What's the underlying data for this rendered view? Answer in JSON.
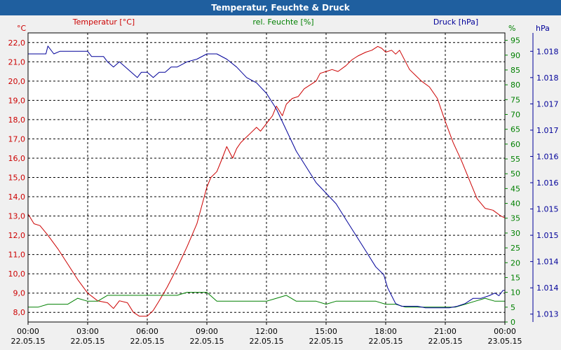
{
  "window": {
    "title": "Temperatur, Feuchte & Druck"
  },
  "chart_data": {
    "type": "line",
    "title": "Temperatur, Feuchte & Druck",
    "x_time_labels": [
      "00:00",
      "03:00",
      "06:00",
      "09:00",
      "12:00",
      "15:00",
      "18:00",
      "21:00",
      "00:00"
    ],
    "x_date_labels": [
      "22.05.15",
      "22.05.15",
      "22.05.15",
      "22.05.15",
      "22.05.15",
      "22.05.15",
      "22.05.15",
      "22.05.15",
      "23.05.15"
    ],
    "x_range": [
      0,
      24
    ],
    "grid": true,
    "colors": {
      "temperature": "#cc0000",
      "humidity": "#008000",
      "pressure": "#000099",
      "grid": "#000000",
      "background": "#ffffff",
      "title_bar": "#1f5f9f"
    },
    "axes": {
      "temperature": {
        "label": "Temperatur [°C]",
        "unit": "°C",
        "range": [
          7.5,
          22.5
        ],
        "ticks": [
          "8,0",
          "9,0",
          "10,0",
          "11,0",
          "12,0",
          "13,0",
          "14,0",
          "15,0",
          "16,0",
          "17,0",
          "18,0",
          "19,0",
          "20,0",
          "21,0",
          "22,0"
        ]
      },
      "humidity": {
        "label": "rel. Feuchte [%]",
        "unit": "%",
        "range": [
          0,
          97.5
        ],
        "ticks": [
          "0",
          "5",
          "10",
          "15",
          "20",
          "25",
          "30",
          "35",
          "40",
          "45",
          "50",
          "55",
          "60",
          "65",
          "70",
          "75",
          "80",
          "85",
          "90",
          "95"
        ]
      },
      "pressure": {
        "label": "Druck [hPa]",
        "unit": "hPa",
        "range": [
          1012.85,
          1018.35
        ],
        "ticks": [
          "1.013",
          "1.014",
          "1.014",
          "1.015",
          "1.015",
          "1.016",
          "1.016",
          "1.017",
          "1.017",
          "1.018",
          "1.018"
        ]
      }
    },
    "series": [
      {
        "name": "Temperatur",
        "axis": "temperature",
        "x": [
          0,
          0.3,
          0.6,
          1,
          1.5,
          2,
          2.5,
          3,
          3.5,
          4,
          4.3,
          4.6,
          5,
          5.3,
          5.6,
          6,
          6.3,
          6.6,
          7,
          7.5,
          8,
          8.5,
          9,
          9.2,
          9.5,
          9.7,
          10,
          10.3,
          10.5,
          10.7,
          10.9,
          11.2,
          11.5,
          11.7,
          12,
          12.3,
          12.5,
          12.8,
          13,
          13.3,
          13.6,
          13.9,
          14.2,
          14.5,
          14.7,
          15,
          15.3,
          15.6,
          16,
          16.3,
          16.6,
          17,
          17.3,
          17.6,
          17.8,
          18,
          18.3,
          18.5,
          18.7,
          18.9,
          19.2,
          19.5,
          19.8,
          20.2,
          20.6,
          21,
          21.4,
          21.8,
          22.2,
          22.6,
          23,
          23.4,
          23.8,
          24
        ],
        "values": [
          13.1,
          12.6,
          12.5,
          12.0,
          11.3,
          10.5,
          9.7,
          9.0,
          8.6,
          8.5,
          8.2,
          8.6,
          8.5,
          8.0,
          7.8,
          7.8,
          8.1,
          8.6,
          9.3,
          10.3,
          11.4,
          12.6,
          14.5,
          15.0,
          15.3,
          15.8,
          16.6,
          16.0,
          16.5,
          16.8,
          17.0,
          17.3,
          17.6,
          17.4,
          17.8,
          18.2,
          18.7,
          18.2,
          18.8,
          19.1,
          19.2,
          19.6,
          19.8,
          20.0,
          20.4,
          20.5,
          20.6,
          20.5,
          20.8,
          21.1,
          21.3,
          21.5,
          21.6,
          21.8,
          21.7,
          21.5,
          21.6,
          21.4,
          21.6,
          21.2,
          20.6,
          20.3,
          20.0,
          19.7,
          19.1,
          17.9,
          16.8,
          15.9,
          14.9,
          13.9,
          13.4,
          13.3,
          13.0,
          12.9
        ]
      },
      {
        "name": "rel. Feuchte",
        "axis": "humidity",
        "x": [
          0,
          0.5,
          1,
          1.5,
          2,
          2.5,
          3,
          3.5,
          4,
          4.5,
          5,
          5.5,
          6,
          6.5,
          7,
          7.5,
          8,
          8.5,
          9,
          9.5,
          10,
          10.5,
          11,
          11.5,
          12,
          12.5,
          13,
          13.5,
          14,
          14.5,
          15,
          15.5,
          16,
          16.5,
          17,
          17.5,
          18,
          18.5,
          19,
          19.5,
          20,
          20.5,
          21,
          21.5,
          22,
          22.5,
          23,
          23.5,
          24
        ],
        "values": [
          5,
          5,
          6,
          6,
          6,
          8,
          7,
          7,
          9,
          9,
          9,
          9,
          9,
          9,
          9,
          9,
          10,
          10,
          10,
          7,
          7,
          7,
          7,
          7,
          7,
          8,
          9,
          7,
          7,
          7,
          6,
          7,
          7,
          7,
          7,
          7,
          6,
          6,
          5,
          5,
          5,
          5,
          5,
          5,
          6,
          7,
          8,
          7,
          7
        ]
      },
      {
        "name": "Druck",
        "axis": "pressure",
        "x": [
          0,
          0.3,
          0.9,
          1,
          1.3,
          1.6,
          2,
          2.5,
          3,
          3.2,
          3.5,
          3.8,
          4,
          4.3,
          4.6,
          4.9,
          5.2,
          5.5,
          5.7,
          6,
          6.3,
          6.6,
          6.9,
          7.2,
          7.5,
          8,
          8.5,
          9,
          9.5,
          10,
          10.5,
          11,
          11.5,
          12,
          12.5,
          13,
          13.5,
          14,
          14.5,
          15,
          15.5,
          16,
          16.5,
          17,
          17.5,
          17.9,
          18.1,
          18.3,
          18.5,
          18.8,
          19.2,
          19.6,
          20,
          20.4,
          20.8,
          21.2,
          21.6,
          22,
          22.4,
          22.8,
          23.2,
          23.5,
          23.7,
          23.9,
          24
        ],
        "values": [
          1017.95,
          1017.95,
          1017.95,
          1018.1,
          1017.95,
          1018.0,
          1018.0,
          1018.0,
          1018.0,
          1017.9,
          1017.9,
          1017.9,
          1017.8,
          1017.7,
          1017.8,
          1017.7,
          1017.6,
          1017.5,
          1017.6,
          1017.6,
          1017.5,
          1017.6,
          1017.6,
          1017.7,
          1017.7,
          1017.8,
          1017.85,
          1017.95,
          1017.95,
          1017.85,
          1017.7,
          1017.5,
          1017.4,
          1017.2,
          1016.9,
          1016.5,
          1016.1,
          1015.8,
          1015.5,
          1015.3,
          1015.1,
          1014.8,
          1014.5,
          1014.2,
          1013.9,
          1013.75,
          1013.5,
          1013.35,
          1013.2,
          1013.15,
          1013.15,
          1013.15,
          1013.12,
          1013.12,
          1013.12,
          1013.12,
          1013.15,
          1013.2,
          1013.3,
          1013.3,
          1013.35,
          1013.4,
          1013.35,
          1013.45,
          1013.45
        ]
      }
    ]
  }
}
